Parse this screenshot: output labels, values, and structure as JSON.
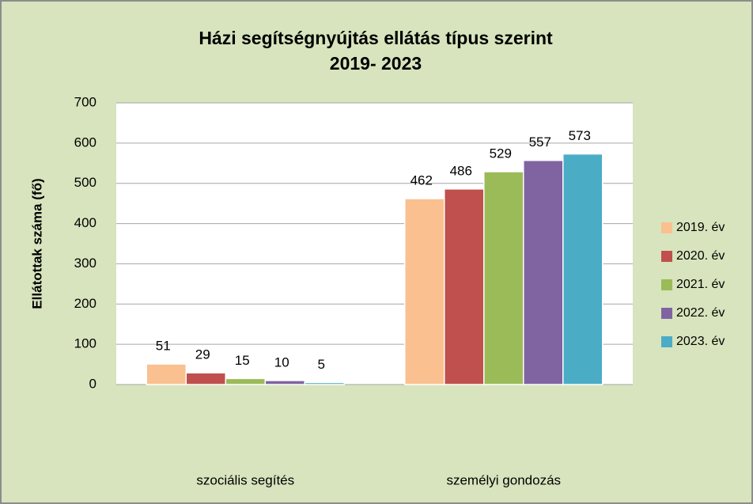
{
  "chart_data": {
    "type": "bar",
    "title": [
      "Házi segítségnyújtás ellátás típus szerint",
      "2019- 2023"
    ],
    "y_label": "Ellátottak száma (fő)",
    "categories": [
      "szociális segítés",
      "személyi gondozás"
    ],
    "series": [
      {
        "name": "2019. év",
        "color": "#fac090",
        "values": [
          51,
          462
        ]
      },
      {
        "name": "2020. év",
        "color": "#c0504d",
        "values": [
          29,
          486
        ]
      },
      {
        "name": "2021. év",
        "color": "#9bbb59",
        "values": [
          15,
          529
        ]
      },
      {
        "name": "2022. év",
        "color": "#8064a2",
        "values": [
          10,
          557
        ]
      },
      {
        "name": "2023. év",
        "color": "#4bacc6",
        "values": [
          5,
          573
        ]
      }
    ],
    "ylim": [
      0,
      700
    ],
    "yticks": [
      0,
      100,
      200,
      300,
      400,
      500,
      600,
      700
    ],
    "grid": true,
    "legend": "right"
  }
}
